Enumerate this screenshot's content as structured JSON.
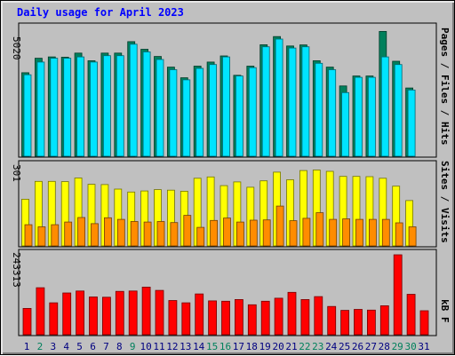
{
  "chart_data": {
    "type": "bar",
    "title": "Daily usage for April 2023",
    "categories": [
      "1",
      "2",
      "3",
      "4",
      "5",
      "6",
      "7",
      "8",
      "9",
      "10",
      "11",
      "12",
      "13",
      "14",
      "15",
      "16",
      "17",
      "18",
      "19",
      "20",
      "21",
      "22",
      "23",
      "24",
      "25",
      "26",
      "27",
      "28",
      "29",
      "30",
      "31"
    ],
    "weekend_days": [
      "2",
      "9",
      "15",
      "16",
      "22",
      "23",
      "29",
      "30"
    ],
    "top_panel": {
      "scale_label": "5020",
      "ymax": 5020,
      "series": [
        {
          "name": "Hits",
          "color": "#00805c",
          "values": [
            3280,
            3850,
            3900,
            3890,
            4050,
            3750,
            4050,
            4050,
            4500,
            4200,
            3920,
            3500,
            3080,
            3540,
            3700,
            3940,
            3180,
            3540,
            4380,
            4700,
            4330,
            4370,
            3750,
            3500,
            2760,
            3150,
            3150,
            4900,
            3730,
            2680,
            0
          ]
        },
        {
          "name": "Files",
          "color": "#00e4ff",
          "values": [
            3200,
            3700,
            3850,
            3850,
            3900,
            3700,
            3950,
            3950,
            4400,
            4100,
            3800,
            3400,
            3000,
            3450,
            3600,
            3900,
            3150,
            3480,
            4300,
            4600,
            4250,
            4300,
            3650,
            3400,
            2500,
            3100,
            3100,
            3900,
            3600,
            2600,
            0
          ]
        },
        {
          "name": "Pages",
          "color": "#00a6c8",
          "values": [
            0,
            0,
            0,
            0,
            0,
            0,
            0,
            0,
            0,
            0,
            0,
            0,
            0,
            0,
            0,
            0,
            0,
            0,
            0,
            0,
            0,
            0,
            0,
            0,
            0,
            0,
            0,
            0,
            0,
            0,
            0
          ]
        }
      ],
      "axis_label_parts": [
        {
          "text": "Pages",
          "color": "#00a6c8"
        },
        {
          "text": " / ",
          "color": "#000080"
        },
        {
          "text": "Files",
          "color": "#00c8e6"
        },
        {
          "text": " / ",
          "color": "#000080"
        },
        {
          "text": "Hits",
          "color": "#00805c"
        }
      ]
    },
    "middle_panel": {
      "scale_label": "301",
      "ymax": 301,
      "series": [
        {
          "name": "Visits",
          "color": "#ffff00",
          "values": [
            176,
            243,
            243,
            242,
            256,
            232,
            231,
            214,
            203,
            207,
            212,
            210,
            206,
            255,
            260,
            227,
            241,
            221,
            245,
            278,
            249,
            284,
            286,
            281,
            262,
            262,
            261,
            255,
            225,
            171,
            0
          ]
        },
        {
          "name": "Sites",
          "color": "#ff8c00",
          "values": [
            80,
            72,
            80,
            90,
            107,
            84,
            106,
            100,
            92,
            90,
            92,
            88,
            115,
            70,
            96,
            105,
            90,
            97,
            98,
            150,
            95,
            104,
            125,
            100,
            102,
            100,
            100,
            100,
            87,
            72,
            0
          ]
        }
      ],
      "axis_label_parts": [
        {
          "text": "Sites",
          "color": "#ff8c00"
        },
        {
          "text": " / ",
          "color": "#000080"
        },
        {
          "text": "Visits",
          "color": "#e6e600"
        }
      ]
    },
    "bottom_panel": {
      "scale_label": "243313",
      "ymax": 243313,
      "series": [
        {
          "name": "kB F",
          "color": "#ff0000",
          "values": [
            80000,
            143000,
            97000,
            127000,
            133000,
            115000,
            114000,
            132000,
            133000,
            145000,
            135000,
            104000,
            97000,
            124000,
            103000,
            102000,
            107000,
            91000,
            102000,
            111000,
            129000,
            107000,
            116000,
            86000,
            74000,
            77000,
            75000,
            88000,
            243313,
            123000,
            73000
          ]
        }
      ],
      "axis_label_parts": [
        {
          "text": "kB F",
          "color": "#ff0000"
        }
      ]
    }
  },
  "colors": {
    "frame_bg": "#c0c0c0",
    "panel_border": "#000000",
    "title": "#0000ff",
    "day_label": "#000080",
    "weekend_day_label": "#00805c"
  }
}
